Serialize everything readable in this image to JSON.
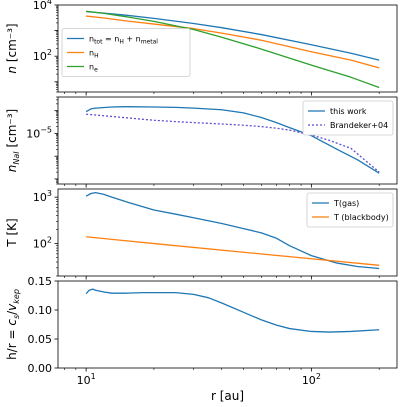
{
  "colors": {
    "blue": "#1f77b4",
    "orange": "#ff7f0e",
    "green": "#2ca02c",
    "purple": "#5a4fcf"
  },
  "xlabel": "r [au]",
  "xticks": [
    {
      "value": 10,
      "base": "10",
      "exp": "1"
    },
    {
      "value": 100,
      "base": "10",
      "exp": "2"
    }
  ],
  "chart_data": [
    {
      "type": "line",
      "ylabel": "n [cm⁻³]",
      "yscale": "log",
      "xscale": "log",
      "xlim": [
        7.5,
        240
      ],
      "ylim": [
        4,
        10000
      ],
      "yticks": [
        {
          "value": 100,
          "base": "10",
          "exp": "2"
        },
        {
          "value": 10000,
          "base": "10",
          "exp": "4"
        }
      ],
      "legend": "center-left",
      "series": [
        {
          "name": "n_tot = n_H + n_metal",
          "legend_html": "n<sub>tot</sub> = n<sub>H</sub> + n<sub>metal</sub>",
          "color": "blue",
          "dash": "",
          "x": [
            10,
            12,
            15,
            20,
            30,
            40,
            60,
            100,
            150,
            200
          ],
          "y": [
            5500,
            4800,
            4000,
            3000,
            1900,
            1300,
            700,
            280,
            130,
            70
          ]
        },
        {
          "name": "n_H",
          "legend_html": "n<sub>H</sub>",
          "color": "orange",
          "dash": "",
          "x": [
            10,
            12,
            15,
            20,
            30,
            40,
            60,
            100,
            150,
            200
          ],
          "y": [
            3700,
            3100,
            2400,
            1800,
            1200,
            800,
            420,
            150,
            70,
            35
          ]
        },
        {
          "name": "n_e",
          "legend_html": "n<sub>e</sub>",
          "color": "green",
          "dash": "",
          "x": [
            10,
            12,
            15,
            20,
            30,
            40,
            60,
            100,
            150,
            200
          ],
          "y": [
            5700,
            4700,
            3500,
            2300,
            1100,
            550,
            190,
            45,
            15,
            6
          ]
        }
      ]
    },
    {
      "type": "line",
      "ylabel": "n_NaI [cm⁻³]",
      "yscale": "log",
      "xscale": "log",
      "xlim": [
        7.5,
        240
      ],
      "ylim": [
        6e-08,
        0.0004
      ],
      "yticks": [
        {
          "value": 1e-05,
          "base": "10",
          "exp": "−5"
        }
      ],
      "legend": "top-right",
      "series": [
        {
          "name": "this work",
          "legend_html": "this work",
          "color": "blue",
          "dash": "",
          "x": [
            10,
            10.5,
            11,
            13,
            15,
            20,
            25,
            30,
            40,
            50,
            60,
            70,
            80,
            100,
            130,
            160,
            200
          ],
          "y": [
            9e-05,
            0.00012,
            0.00013,
            0.000145,
            0.00015,
            0.000145,
            0.00014,
            0.00013,
            0.00011,
            8e-05,
            5e-05,
            3e-05,
            1.8e-05,
            8e-06,
            2e-06,
            7e-07,
            1.8e-07
          ]
        },
        {
          "name": "Brandeker+04",
          "legend_html": "Brandeker+04",
          "color": "purple",
          "dash": "2 2",
          "x": [
            10,
            12,
            15,
            20,
            25,
            30,
            40,
            50,
            60,
            70,
            80,
            100,
            120,
            150,
            200
          ],
          "y": [
            7e-05,
            6e-05,
            4.9e-05,
            3.8e-05,
            3.3e-05,
            3e-05,
            2.6e-05,
            2.3e-05,
            2e-05,
            1.7e-05,
            1.4e-05,
            8.5e-06,
            5e-06,
            2.2e-06,
            2e-07
          ]
        }
      ]
    },
    {
      "type": "line",
      "ylabel": "T [K]",
      "yscale": "log",
      "xscale": "log",
      "xlim": [
        7.5,
        240
      ],
      "ylim": [
        20,
        1500
      ],
      "yticks": [
        {
          "value": 100,
          "base": "10",
          "exp": "2"
        },
        {
          "value": 1000,
          "base": "10",
          "exp": "3"
        }
      ],
      "legend": "top-right",
      "series": [
        {
          "name": "T(gas)",
          "legend_html": "T(gas)",
          "color": "blue",
          "dash": "",
          "x": [
            10,
            10.5,
            11,
            12,
            13,
            15,
            20,
            25,
            30,
            40,
            50,
            60,
            70,
            80,
            100,
            130,
            160,
            200
          ],
          "y": [
            1050,
            1200,
            1250,
            1150,
            1000,
            800,
            530,
            430,
            360,
            270,
            210,
            170,
            130,
            90,
            55,
            38,
            32,
            29
          ]
        },
        {
          "name": "T (blackbody)",
          "legend_html": "T (blackbody)",
          "color": "orange",
          "dash": "",
          "x": [
            10,
            20,
            50,
            100,
            200
          ],
          "y": [
            140,
            100,
            65,
            47,
            34
          ]
        }
      ]
    },
    {
      "type": "line",
      "ylabel": "h/r = c_s/v_kep",
      "yscale": "linear",
      "xscale": "log",
      "xlim": [
        7.5,
        240
      ],
      "ylim": [
        0,
        0.15
      ],
      "yticks": [
        {
          "value": 0,
          "label": "0.00"
        },
        {
          "value": 0.05,
          "label": "0.05"
        },
        {
          "value": 0.1,
          "label": "0.10"
        },
        {
          "value": 0.15,
          "label": "0.15"
        }
      ],
      "legend": "",
      "series": [
        {
          "name": "h/r",
          "color": "blue",
          "dash": "",
          "x": [
            10,
            10.3,
            10.7,
            11,
            12,
            13,
            15,
            18,
            20,
            25,
            30,
            35,
            40,
            50,
            60,
            70,
            80,
            100,
            120,
            150,
            200
          ],
          "y": [
            0.128,
            0.134,
            0.136,
            0.134,
            0.131,
            0.129,
            0.129,
            0.13,
            0.13,
            0.13,
            0.127,
            0.121,
            0.112,
            0.096,
            0.083,
            0.074,
            0.068,
            0.063,
            0.062,
            0.063,
            0.066
          ]
        }
      ]
    }
  ]
}
